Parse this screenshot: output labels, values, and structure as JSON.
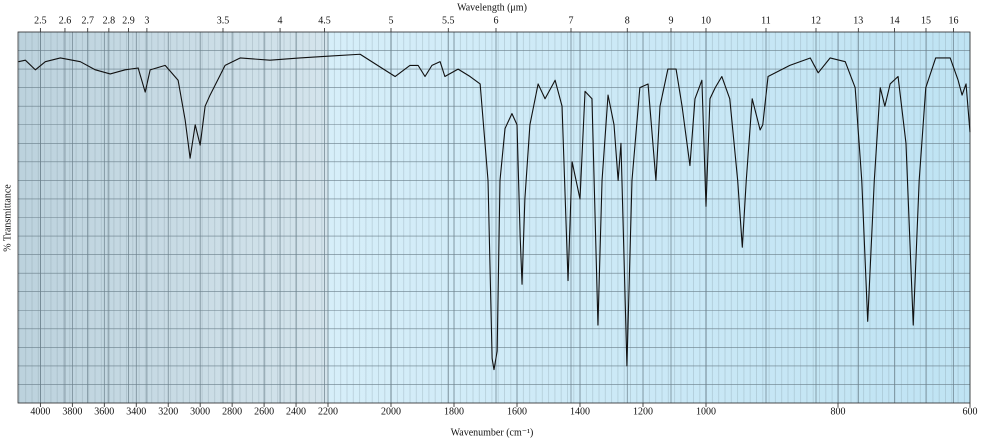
{
  "chart_data": {
    "type": "line",
    "title": "Wavelength (μm)",
    "xlabel": "Wavenumber (cm⁻¹)",
    "ylabel": "% Transmittance",
    "xlim": [
      4140,
      600
    ],
    "xscale_breaks": [
      2200,
      1000
    ],
    "xticks": [
      4000,
      3800,
      3600,
      3400,
      3200,
      3000,
      2800,
      2600,
      2400,
      2200,
      2000,
      1800,
      1600,
      1400,
      1200,
      1000,
      800,
      600
    ],
    "x2ticks": [
      2.5,
      2.6,
      2.7,
      2.8,
      2.9,
      3,
      3.5,
      4,
      4.5,
      5,
      5.5,
      6,
      7,
      8,
      9,
      10,
      11,
      12,
      13,
      14,
      15,
      16
    ],
    "ylim": [
      0,
      100
    ],
    "ygrid": [
      0,
      5,
      10,
      15,
      20,
      25,
      30,
      35,
      40,
      45,
      50,
      55,
      60,
      65,
      70,
      75,
      80,
      85,
      90,
      95,
      100
    ],
    "grid": true,
    "color": "#111111",
    "x": [
      4137,
      4094,
      4031,
      3969,
      3875,
      3750,
      3656,
      3563,
      3469,
      3388,
      3344,
      3313,
      3219,
      3138,
      3094,
      3063,
      3031,
      3000,
      2969,
      2938,
      2906,
      2844,
      2750,
      2563,
      2375,
      2194,
      2098,
      1987,
      1940,
      1914,
      1892,
      1870,
      1844,
      1829,
      1787,
      1749,
      1717,
      1692,
      1679,
      1673,
      1663,
      1654,
      1638,
      1616,
      1600,
      1590,
      1584,
      1575,
      1559,
      1533,
      1511,
      1479,
      1457,
      1438,
      1425,
      1400,
      1384,
      1362,
      1343,
      1330,
      1311,
      1292,
      1279,
      1270,
      1251,
      1235,
      1210,
      1184,
      1159,
      1146,
      1121,
      1095,
      1076,
      1051,
      1035,
      1013,
      1000,
      994,
      986,
      976,
      964,
      952,
      945,
      939,
      930,
      918,
      914,
      906,
      873,
      842,
      830,
      812,
      789,
      774,
      764,
      755,
      745,
      736,
      729,
      721,
      709,
      697,
      686,
      677,
      667,
      652,
      630,
      618,
      612,
      606,
      600
    ],
    "values": [
      92,
      92.4,
      89.8,
      92,
      93,
      92,
      89.8,
      88.7,
      89.8,
      90.3,
      83.8,
      89.8,
      91,
      87,
      76.3,
      66,
      75,
      69.5,
      80,
      83,
      85.7,
      91,
      93,
      92.4,
      93,
      93.5,
      94,
      88,
      91,
      91,
      88,
      91,
      92,
      88,
      90,
      88,
      86,
      60,
      12,
      9,
      14,
      60,
      74,
      78,
      75,
      45,
      32,
      55,
      75,
      86,
      82,
      87,
      80,
      33,
      65,
      55,
      84,
      82,
      21,
      60,
      83,
      75,
      60,
      70,
      10,
      60,
      85,
      86,
      60,
      80,
      90,
      90,
      80,
      64,
      82,
      87,
      53,
      82,
      85,
      88,
      82,
      60,
      42,
      60,
      82,
      73.6,
      75,
      88,
      91,
      93,
      89,
      93,
      92,
      85,
      60,
      22,
      60,
      85,
      80,
      86,
      88,
      70,
      21,
      60,
      85,
      93,
      93,
      87,
      83,
      86,
      73
    ]
  }
}
